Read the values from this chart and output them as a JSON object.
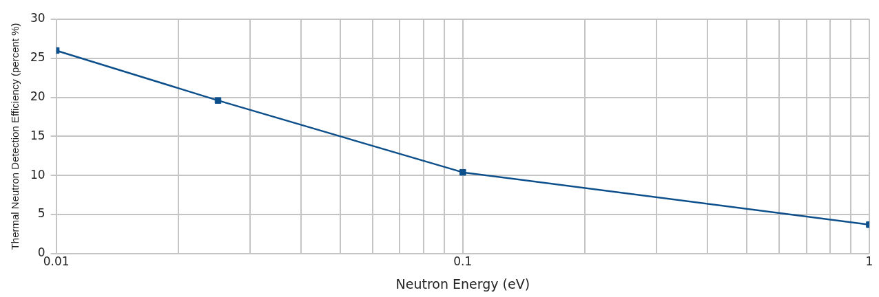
{
  "chart_data": {
    "type": "line",
    "xlabel": "Neutron Energy (eV)",
    "ylabel": "Thermal Neutron Detection Efficiency (percent %)",
    "log": "x",
    "x": [
      0.01,
      0.025,
      0.1,
      1
    ],
    "series": [
      {
        "color": "#0d4f8b",
        "values": [
          26,
          19.6,
          10.4,
          3.7
        ]
      }
    ],
    "xlim": [
      0.01,
      1
    ],
    "xticks": [
      0.01,
      {
        "value": 0.02,
        "label": null
      },
      {
        "value": 0.03,
        "label": null
      },
      {
        "value": 0.04,
        "label": null
      },
      {
        "value": 0.05,
        "label": null
      },
      {
        "value": 0.06,
        "label": null
      },
      {
        "value": 0.07,
        "label": null
      },
      {
        "value": 0.08,
        "label": null
      },
      {
        "value": 0.09,
        "label": null
      },
      0.1,
      {
        "value": 0.2,
        "label": null
      },
      {
        "value": 0.3,
        "label": null
      },
      {
        "value": 0.4,
        "label": null
      },
      {
        "value": 0.5,
        "label": null
      },
      {
        "value": 0.6,
        "label": null
      },
      {
        "value": 0.7,
        "label": null
      },
      {
        "value": 0.8,
        "label": null
      },
      {
        "value": 0.9,
        "label": null
      },
      1
    ],
    "ylim": [
      0,
      30
    ],
    "yticks": [
      0,
      5,
      10,
      15,
      20,
      25,
      30
    ],
    "grid": true,
    "legend": false,
    "marker": "square",
    "line_style": "solid"
  }
}
